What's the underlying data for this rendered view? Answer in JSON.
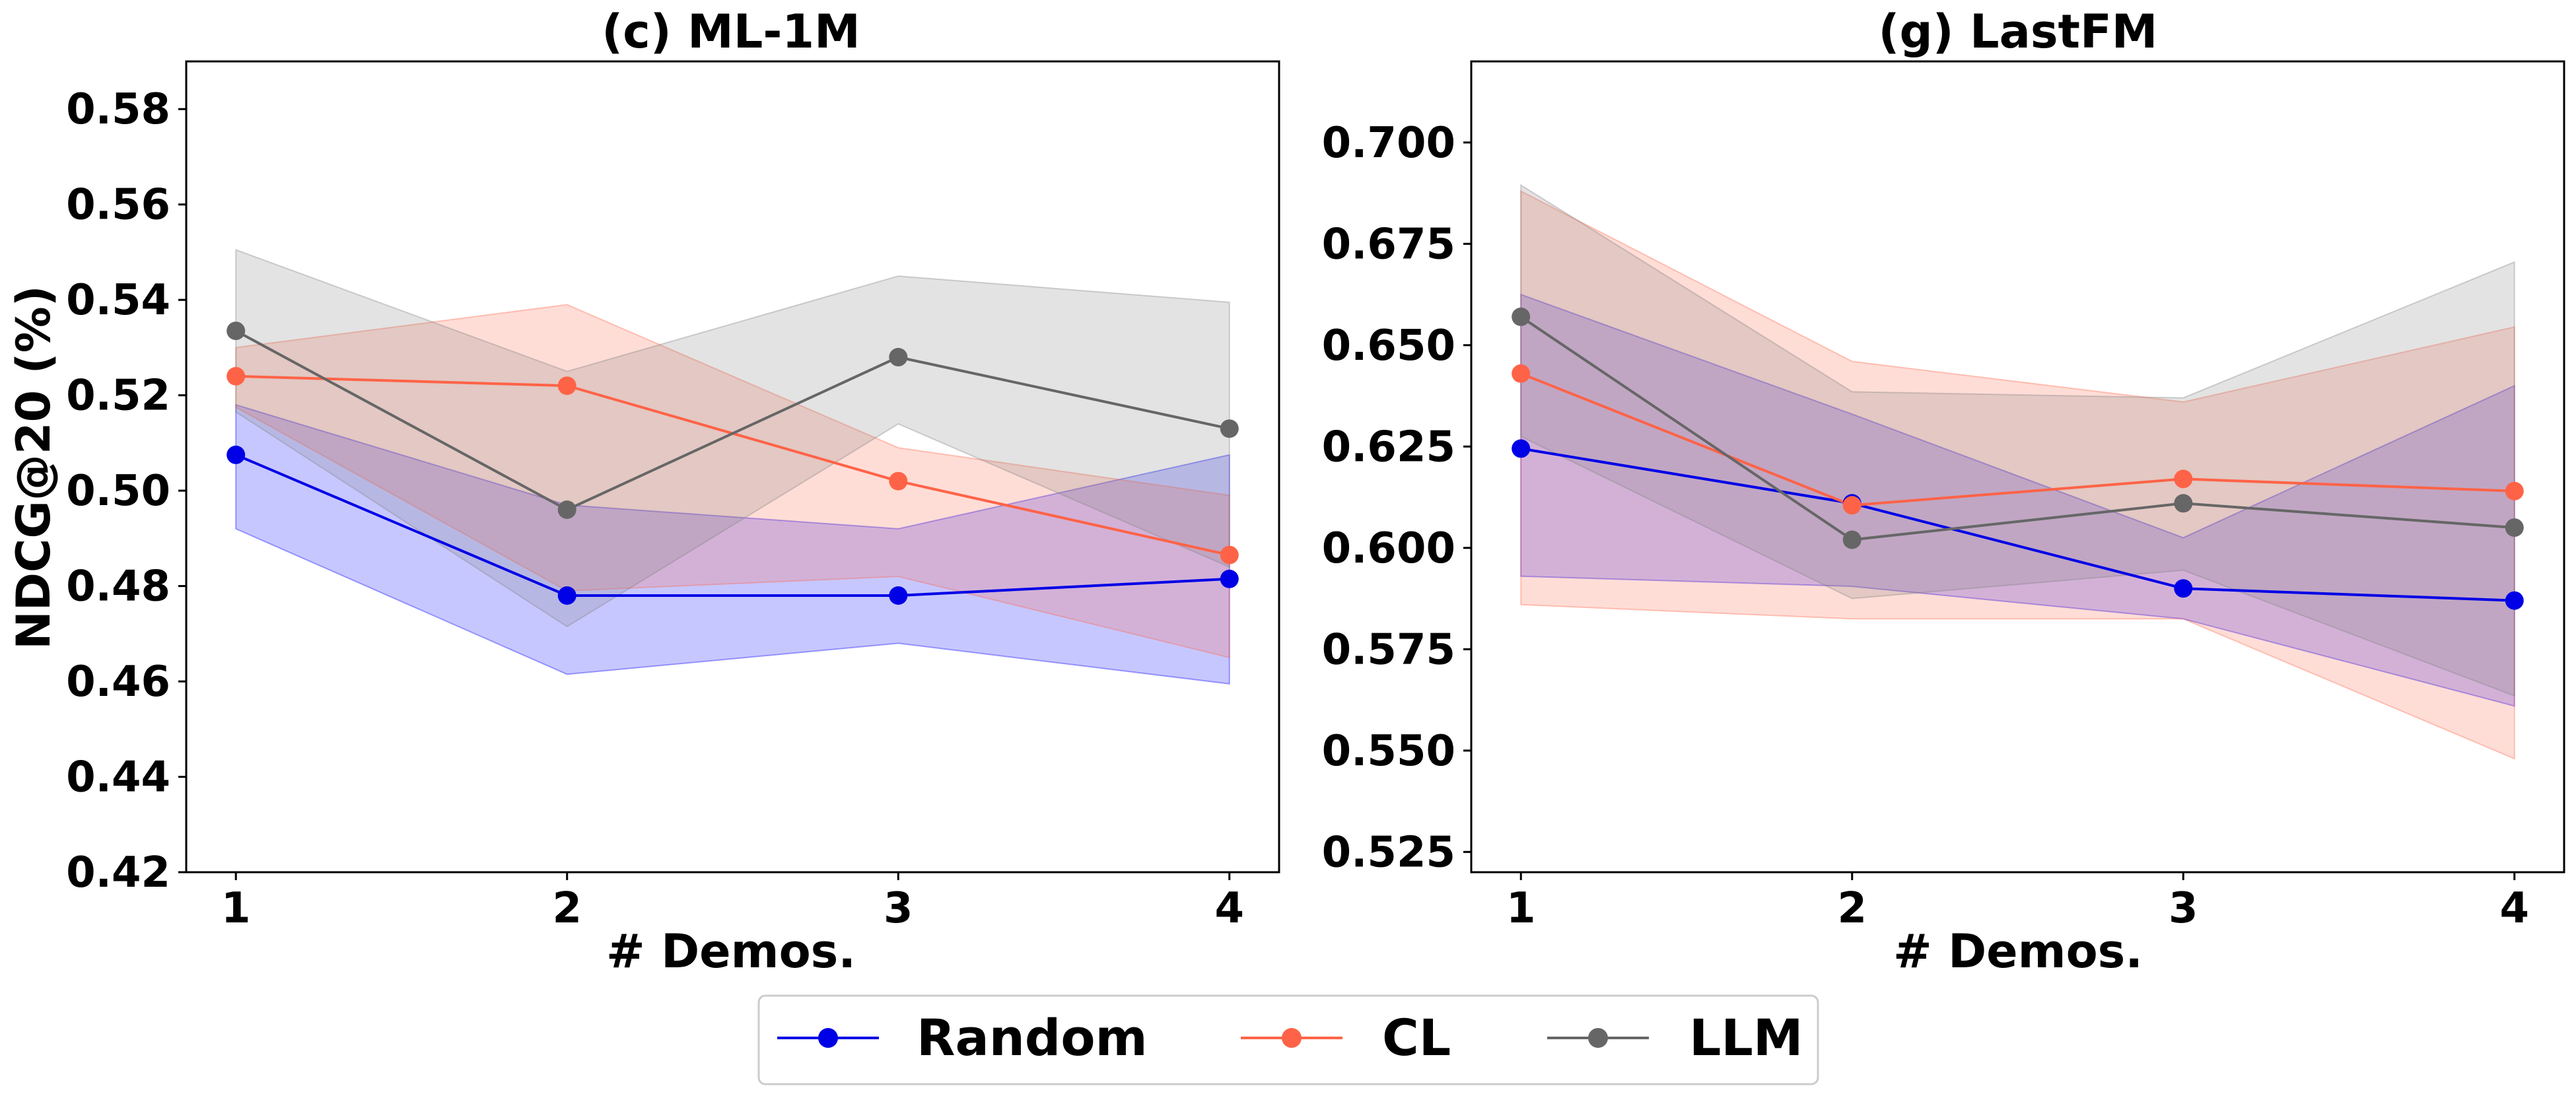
{
  "legend": {
    "items": [
      {
        "label": "Random",
        "color": "#0000e6"
      },
      {
        "label": "CL",
        "color": "#ff6347"
      },
      {
        "label": "LLM",
        "color": "#666666"
      }
    ]
  },
  "chart_data": [
    {
      "type": "line",
      "title": "(c) ML-1M",
      "xlabel": "# Demos.",
      "ylabel": "NDCG@20 (%)",
      "x": [
        1,
        2,
        3,
        4
      ],
      "xlim": [
        0.85,
        4.15
      ],
      "ylim": [
        0.42,
        0.59
      ],
      "yticks": [
        0.42,
        0.44,
        0.46,
        0.48,
        0.5,
        0.52,
        0.54,
        0.56,
        0.58
      ],
      "ytick_labels": [
        "0.42",
        "0.44",
        "0.46",
        "0.48",
        "0.50",
        "0.52",
        "0.54",
        "0.56",
        "0.58"
      ],
      "xtick_labels": [
        "1",
        "2",
        "3",
        "4"
      ],
      "series": [
        {
          "name": "Random",
          "color": "#0000e6",
          "fill": "#0000ff",
          "values": [
            0.5075,
            0.478,
            0.478,
            0.4815
          ],
          "lower": [
            0.492,
            0.4615,
            0.468,
            0.4595
          ],
          "upper": [
            0.518,
            0.497,
            0.492,
            0.5075
          ]
        },
        {
          "name": "CL",
          "color": "#ff6347",
          "fill": "#ff6347",
          "values": [
            0.524,
            0.522,
            0.502,
            0.4865
          ],
          "lower": [
            0.5175,
            0.479,
            0.482,
            0.465
          ],
          "upper": [
            0.53,
            0.539,
            0.509,
            0.499
          ]
        },
        {
          "name": "LLM",
          "color": "#666666",
          "fill": "#808080",
          "values": [
            0.5335,
            0.496,
            0.528,
            0.513
          ],
          "lower": [
            0.5165,
            0.4715,
            0.514,
            0.484
          ],
          "upper": [
            0.5505,
            0.525,
            0.545,
            0.5395
          ]
        }
      ]
    },
    {
      "type": "line",
      "title": "(g) LastFM",
      "xlabel": "# Demos.",
      "ylabel": "",
      "x": [
        1,
        2,
        3,
        4
      ],
      "xlim": [
        0.85,
        4.15
      ],
      "ylim": [
        0.52,
        0.72
      ],
      "yticks": [
        0.525,
        0.55,
        0.575,
        0.6,
        0.625,
        0.65,
        0.675,
        0.7
      ],
      "ytick_labels": [
        "0.525",
        "0.550",
        "0.575",
        "0.600",
        "0.625",
        "0.650",
        "0.675",
        "0.700"
      ],
      "xtick_labels": [
        "1",
        "2",
        "3",
        "4"
      ],
      "series": [
        {
          "name": "Random",
          "color": "#0000e6",
          "fill": "#0000ff",
          "values": [
            0.6245,
            0.611,
            0.59,
            0.587
          ],
          "lower": [
            0.593,
            0.5905,
            0.5825,
            0.561
          ],
          "upper": [
            0.6625,
            0.633,
            0.6025,
            0.64
          ]
        },
        {
          "name": "CL",
          "color": "#ff6347",
          "fill": "#ff6347",
          "values": [
            0.643,
            0.6105,
            0.617,
            0.614
          ],
          "lower": [
            0.586,
            0.5825,
            0.5825,
            0.548
          ],
          "upper": [
            0.688,
            0.646,
            0.636,
            0.6545
          ]
        },
        {
          "name": "LLM",
          "color": "#666666",
          "fill": "#808080",
          "values": [
            0.657,
            0.602,
            0.611,
            0.605
          ],
          "lower": [
            0.6275,
            0.5875,
            0.5945,
            0.5635
          ],
          "upper": [
            0.6895,
            0.6385,
            0.637,
            0.6705
          ]
        }
      ]
    }
  ]
}
